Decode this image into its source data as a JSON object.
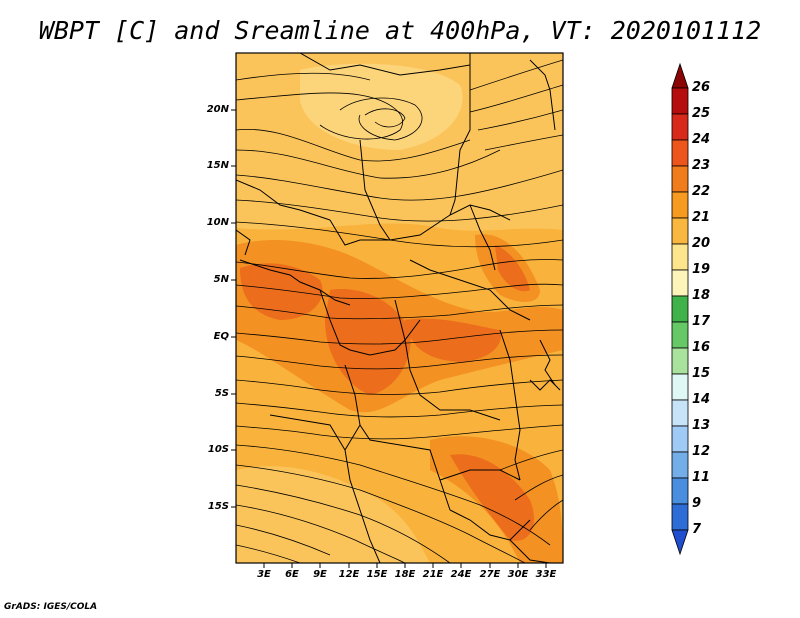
{
  "title": "WBPT [C] and Sreamline at 400hPa, VT: 2020101112",
  "credit": "GrADS: IGES/COLA",
  "map": {
    "lat_labels": [
      "20N",
      "15N",
      "10N",
      "5N",
      "EQ",
      "5S",
      "10S",
      "15S"
    ],
    "lon_labels": [
      "3E",
      "6E",
      "9E",
      "12E",
      "15E",
      "18E",
      "21E",
      "24E",
      "27E",
      "30E",
      "33E"
    ],
    "field_colors": {
      "c19": "#fde98a",
      "c20": "#fbc85c",
      "c21": "#f8ad37",
      "c22": "#f39122",
      "c23": "#ec6d1c"
    }
  },
  "colorbar": {
    "levels": [
      "26",
      "25",
      "24",
      "23",
      "22",
      "21",
      "20",
      "19",
      "18",
      "17",
      "16",
      "15",
      "14",
      "13",
      "12",
      "11",
      "9",
      "7"
    ],
    "colors": [
      "#8a0505",
      "#b60e0e",
      "#d72a1a",
      "#ec561d",
      "#f07c1c",
      "#f79a20",
      "#f9b73f",
      "#fde58e",
      "#fdf4ba",
      "#3fb24a",
      "#67c965",
      "#a9e29c",
      "#dff7f5",
      "#c7e3f8",
      "#9fcaf5",
      "#74aee9",
      "#4a8ee0",
      "#2e6cd6"
    ],
    "top_color": "#8a0505",
    "bottom_color": "#1f4fcf"
  }
}
